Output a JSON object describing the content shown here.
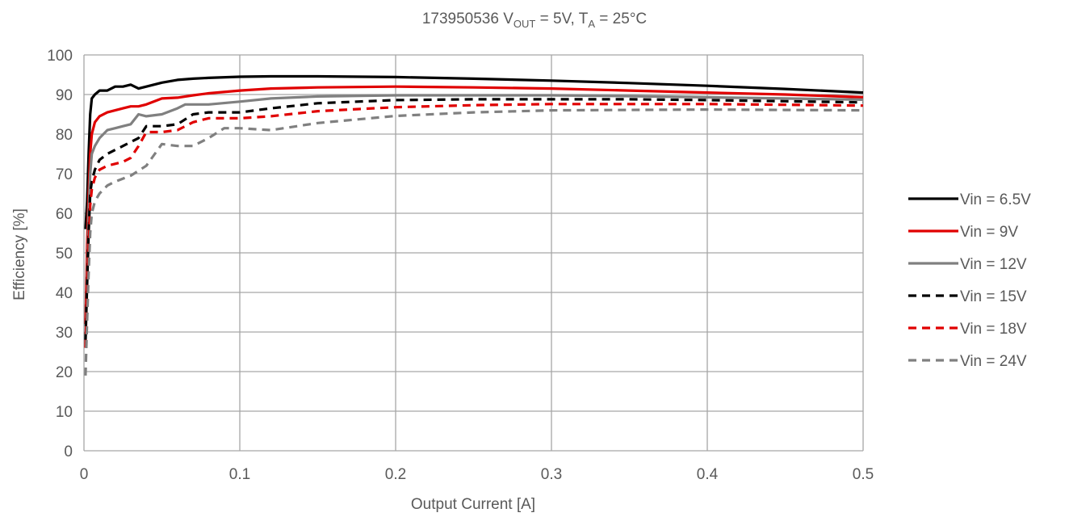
{
  "chart_data": {
    "type": "line",
    "title": {
      "prefix": "173950536 ",
      "v": "V",
      "v_sub": "OUT",
      "mid": " = 5V, ",
      "t": "T",
      "t_sub": "A",
      "suffix": " = 25°C"
    },
    "xlabel": "Output Current [A]",
    "ylabel": "Efficiency [%]",
    "xlim": [
      0,
      0.5
    ],
    "ylim": [
      0,
      100
    ],
    "x_ticks": [
      0,
      0.1,
      0.2,
      0.3,
      0.4,
      0.5
    ],
    "x_tick_labels": [
      "0",
      "0.1",
      "0.2",
      "0.3",
      "0.4",
      "0.5"
    ],
    "y_ticks": [
      0,
      10,
      20,
      30,
      40,
      50,
      60,
      70,
      80,
      90,
      100
    ],
    "y_tick_labels": [
      "0",
      "10",
      "20",
      "30",
      "40",
      "50",
      "60",
      "70",
      "80",
      "90",
      "100"
    ],
    "grid": true,
    "legend_position": "right",
    "series": [
      {
        "name": "Vin = 6.5V",
        "color": "#000000",
        "dash": "solid",
        "points": [
          [
            0.001,
            56
          ],
          [
            0.002,
            63
          ],
          [
            0.003,
            75
          ],
          [
            0.004,
            85
          ],
          [
            0.005,
            89
          ],
          [
            0.007,
            90
          ],
          [
            0.01,
            91
          ],
          [
            0.015,
            91
          ],
          [
            0.02,
            92
          ],
          [
            0.025,
            92
          ],
          [
            0.03,
            92.5
          ],
          [
            0.035,
            91.5
          ],
          [
            0.04,
            92
          ],
          [
            0.05,
            93
          ],
          [
            0.06,
            93.7
          ],
          [
            0.07,
            94
          ],
          [
            0.08,
            94.2
          ],
          [
            0.1,
            94.5
          ],
          [
            0.12,
            94.6
          ],
          [
            0.15,
            94.6
          ],
          [
            0.2,
            94.4
          ],
          [
            0.25,
            94
          ],
          [
            0.3,
            93.5
          ],
          [
            0.35,
            92.9
          ],
          [
            0.4,
            92.2
          ],
          [
            0.45,
            91.4
          ],
          [
            0.5,
            90.5
          ]
        ]
      },
      {
        "name": "Vin = 9V",
        "color": "#e00000",
        "dash": "solid",
        "points": [
          [
            0.001,
            32
          ],
          [
            0.002,
            52
          ],
          [
            0.003,
            65
          ],
          [
            0.004,
            75
          ],
          [
            0.005,
            80
          ],
          [
            0.007,
            83
          ],
          [
            0.01,
            84.5
          ],
          [
            0.015,
            85.5
          ],
          [
            0.02,
            86
          ],
          [
            0.025,
            86.5
          ],
          [
            0.03,
            87
          ],
          [
            0.035,
            87
          ],
          [
            0.04,
            87.5
          ],
          [
            0.05,
            89
          ],
          [
            0.06,
            89.2
          ],
          [
            0.07,
            89.8
          ],
          [
            0.08,
            90.3
          ],
          [
            0.1,
            91
          ],
          [
            0.12,
            91.5
          ],
          [
            0.15,
            91.8
          ],
          [
            0.2,
            92
          ],
          [
            0.25,
            91.8
          ],
          [
            0.3,
            91.5
          ],
          [
            0.35,
            91
          ],
          [
            0.4,
            90.5
          ],
          [
            0.45,
            90
          ],
          [
            0.5,
            89.3
          ]
        ]
      },
      {
        "name": "Vin = 12V",
        "color": "#808080",
        "dash": "solid",
        "points": [
          [
            0.001,
            27
          ],
          [
            0.002,
            45
          ],
          [
            0.003,
            60
          ],
          [
            0.004,
            70
          ],
          [
            0.005,
            75
          ],
          [
            0.007,
            77
          ],
          [
            0.01,
            79
          ],
          [
            0.015,
            81
          ],
          [
            0.02,
            81.5
          ],
          [
            0.025,
            82
          ],
          [
            0.03,
            82.5
          ],
          [
            0.035,
            85
          ],
          [
            0.04,
            84.5
          ],
          [
            0.05,
            85
          ],
          [
            0.06,
            86.5
          ],
          [
            0.065,
            87.5
          ],
          [
            0.07,
            87.5
          ],
          [
            0.08,
            87.5
          ],
          [
            0.1,
            88.2
          ],
          [
            0.12,
            89
          ],
          [
            0.15,
            89.5
          ],
          [
            0.2,
            89.8
          ],
          [
            0.25,
            89.8
          ],
          [
            0.3,
            89.8
          ],
          [
            0.35,
            89.6
          ],
          [
            0.4,
            89.3
          ],
          [
            0.45,
            89
          ],
          [
            0.5,
            88.7
          ]
        ]
      },
      {
        "name": "Vin = 15V",
        "color": "#000000",
        "dash": "dashed",
        "points": [
          [
            0.001,
            28
          ],
          [
            0.002,
            42
          ],
          [
            0.003,
            55
          ],
          [
            0.004,
            65
          ],
          [
            0.005,
            68
          ],
          [
            0.007,
            71
          ],
          [
            0.01,
            73.5
          ],
          [
            0.015,
            75
          ],
          [
            0.02,
            76
          ],
          [
            0.025,
            77
          ],
          [
            0.03,
            78
          ],
          [
            0.035,
            79
          ],
          [
            0.04,
            82
          ],
          [
            0.05,
            82
          ],
          [
            0.06,
            82.5
          ],
          [
            0.07,
            85
          ],
          [
            0.08,
            85.5
          ],
          [
            0.1,
            85.5
          ],
          [
            0.12,
            86.5
          ],
          [
            0.15,
            87.8
          ],
          [
            0.2,
            88.6
          ],
          [
            0.25,
            88.8
          ],
          [
            0.3,
            88.8
          ],
          [
            0.35,
            88.8
          ],
          [
            0.4,
            88.6
          ],
          [
            0.45,
            88.3
          ],
          [
            0.5,
            88
          ]
        ]
      },
      {
        "name": "Vin = 18V",
        "color": "#e00000",
        "dash": "dashed",
        "points": [
          [
            0.001,
            26
          ],
          [
            0.002,
            40
          ],
          [
            0.003,
            52
          ],
          [
            0.004,
            62
          ],
          [
            0.005,
            66
          ],
          [
            0.007,
            69
          ],
          [
            0.01,
            71
          ],
          [
            0.015,
            72
          ],
          [
            0.02,
            72.5
          ],
          [
            0.025,
            73
          ],
          [
            0.03,
            74
          ],
          [
            0.035,
            77
          ],
          [
            0.04,
            80.5
          ],
          [
            0.05,
            80.5
          ],
          [
            0.06,
            81
          ],
          [
            0.07,
            83
          ],
          [
            0.08,
            84
          ],
          [
            0.1,
            84
          ],
          [
            0.12,
            84.5
          ],
          [
            0.15,
            85.8
          ],
          [
            0.2,
            86.8
          ],
          [
            0.25,
            87.3
          ],
          [
            0.3,
            87.6
          ],
          [
            0.35,
            87.6
          ],
          [
            0.4,
            87.6
          ],
          [
            0.45,
            87.4
          ],
          [
            0.5,
            87.2
          ]
        ]
      },
      {
        "name": "Vin = 24V",
        "color": "#808080",
        "dash": "dashed",
        "points": [
          [
            0.001,
            19
          ],
          [
            0.002,
            33
          ],
          [
            0.003,
            45
          ],
          [
            0.004,
            55
          ],
          [
            0.005,
            60
          ],
          [
            0.007,
            63
          ],
          [
            0.01,
            65
          ],
          [
            0.015,
            67
          ],
          [
            0.02,
            68
          ],
          [
            0.03,
            69.5
          ],
          [
            0.04,
            72
          ],
          [
            0.05,
            77.5
          ],
          [
            0.06,
            77
          ],
          [
            0.07,
            77
          ],
          [
            0.08,
            79
          ],
          [
            0.09,
            81.5
          ],
          [
            0.1,
            81.5
          ],
          [
            0.12,
            81
          ],
          [
            0.15,
            82.8
          ],
          [
            0.2,
            84.6
          ],
          [
            0.25,
            85.5
          ],
          [
            0.3,
            86
          ],
          [
            0.35,
            86.1
          ],
          [
            0.4,
            86.2
          ],
          [
            0.45,
            86.1
          ],
          [
            0.5,
            86
          ]
        ]
      }
    ]
  }
}
